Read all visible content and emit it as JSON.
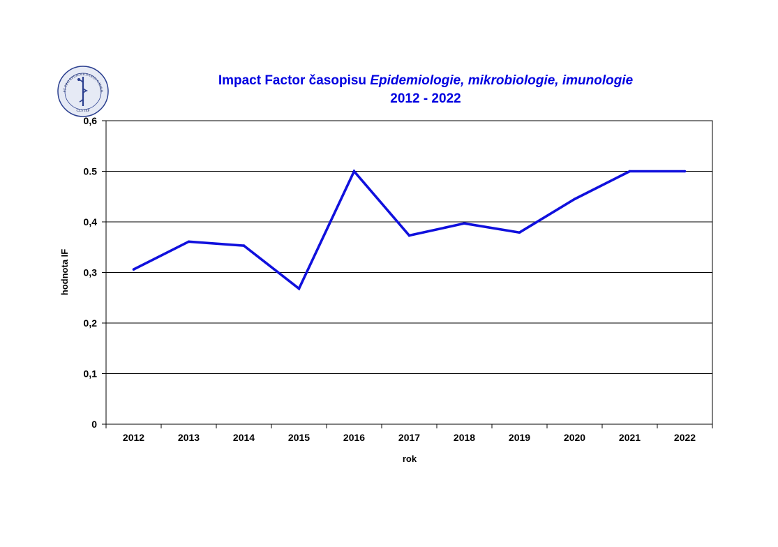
{
  "colors": {
    "title": "#0000e0",
    "series": "#1010dd",
    "gridline": "#000000",
    "logo_ring": "#2b3f8f",
    "logo_fill": "#e6eaf5"
  },
  "logo": {
    "ring_text": "SPOLEČNOST PRO EPIDEMIOLOGII A MIKROBIOLOGII",
    "bottom_text": "ČLS JEP",
    "icon": "rod-of-asclepius-icon"
  },
  "chart_data": {
    "type": "line",
    "title_prefix": "Impact Factor časopisu ",
    "title_italic": "Epidemiologie, mikrobiologie, imunologie",
    "subtitle": "2012 - 2022",
    "xlabel": "rok",
    "ylabel": "hodnota IF",
    "categories": [
      "2012",
      "2013",
      "2014",
      "2015",
      "2016",
      "2017",
      "2018",
      "2019",
      "2020",
      "2021",
      "2022"
    ],
    "series": [
      {
        "values": [
          0.306,
          0.361,
          0.353,
          0.268,
          0.5,
          0.373,
          0.397,
          0.379,
          0.445,
          0.5,
          0.5
        ]
      }
    ],
    "ylim": [
      0,
      0.6
    ],
    "yticks": [
      0,
      0.1,
      0.2,
      0.3,
      0.4,
      0.5,
      0.6
    ],
    "ytick_labels": [
      "0",
      "0,1",
      "0,2",
      "0,3",
      "0,4",
      "0.5",
      "0,6"
    ],
    "grid": true,
    "legend": "none"
  }
}
